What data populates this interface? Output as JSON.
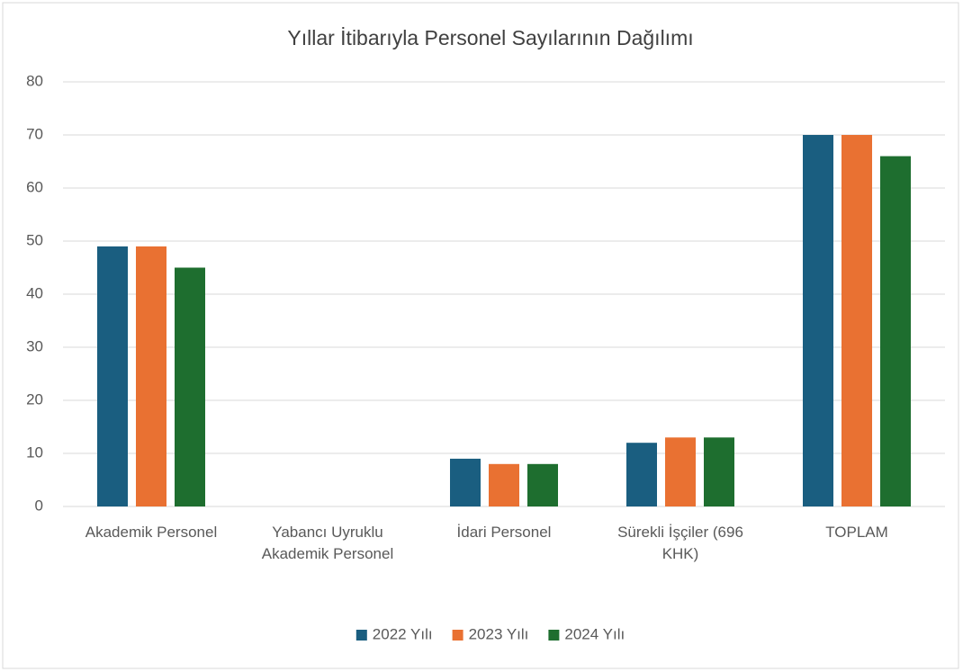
{
  "chart_data": {
    "type": "bar",
    "title": "Yıllar İtibarıyla Personel Sayılarının Dağılımı",
    "categories": [
      "Akademik Personel",
      "Yabancı Uyruklu Akademik Personel",
      "İdari Personel",
      "Sürekli İşçiler (696 KHK)",
      "TOPLAM"
    ],
    "series": [
      {
        "name": "2022 Yılı",
        "color": "#1a5e80",
        "values": [
          49,
          0,
          9,
          12,
          70
        ]
      },
      {
        "name": "2023 Yılı",
        "color": "#e97132",
        "values": [
          49,
          0,
          8,
          13,
          70
        ]
      },
      {
        "name": "2024 Yılı",
        "color": "#1e6e2f",
        "values": [
          45,
          0,
          8,
          13,
          66
        ]
      }
    ],
    "ylim": [
      0,
      80
    ],
    "yticks": [
      0,
      10,
      20,
      30,
      40,
      50,
      60,
      70,
      80
    ],
    "grid": true,
    "legend": "bottom"
  }
}
